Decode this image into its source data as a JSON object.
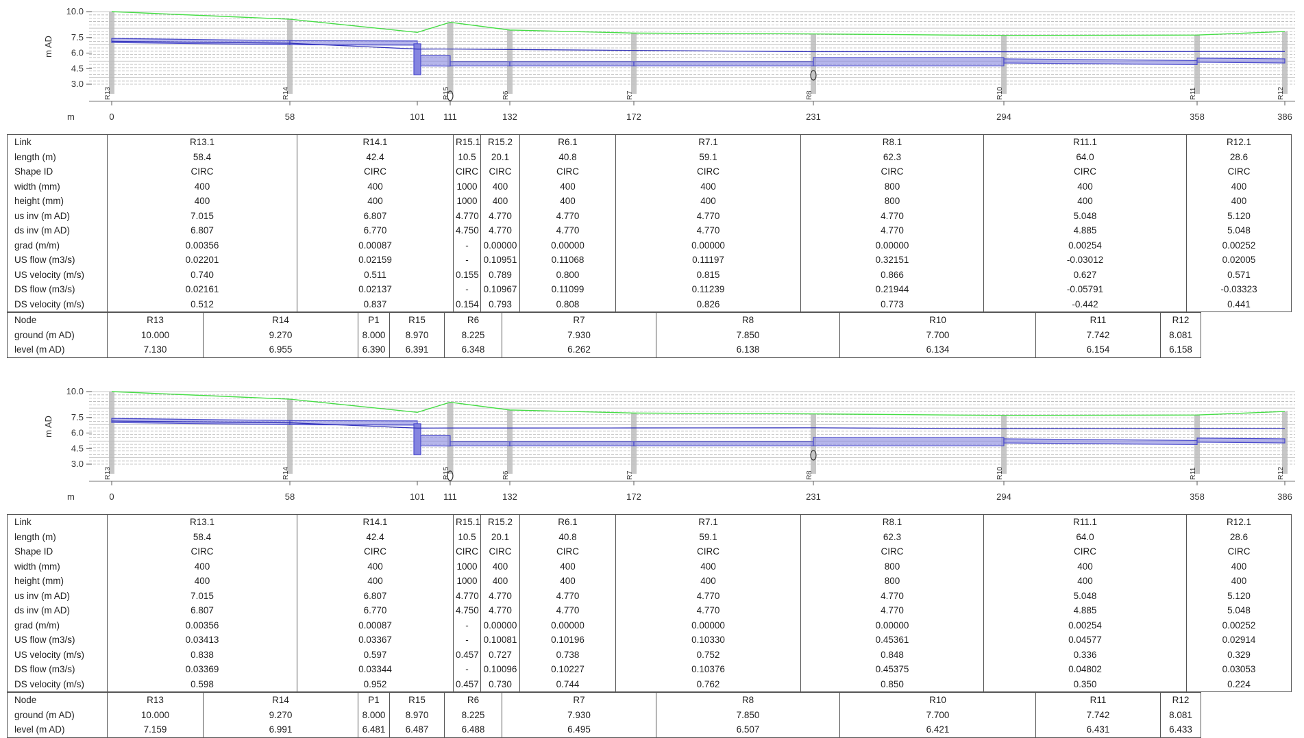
{
  "axis": {
    "y_label": "m AD",
    "x_label": "m",
    "y_ticks": [
      "10.0",
      "7.5",
      "6.0",
      "4.5",
      "3.0"
    ]
  },
  "colors": {
    "ground": "#46dd46",
    "pipe_fill": "#8585e0",
    "pipe_edge": "#4a4acc",
    "manhole": "#bdbdbd",
    "grid": "#b5b5b5",
    "border": "#555555"
  },
  "chainage_ticks": [
    "0",
    "58",
    "101",
    "111",
    "132",
    "172",
    "231",
    "294",
    "358",
    "386"
  ],
  "node_markers": [
    "R13",
    "R14",
    "R15",
    "R6",
    "R7",
    "R8",
    "R10",
    "R11",
    "R12"
  ],
  "panels": [
    {
      "chart_data": {
        "type": "area",
        "xlabel": "m",
        "ylabel": "m AD",
        "ylim": [
          3.0,
          10.0
        ],
        "x": [
          0,
          58.4,
          100.8,
          111.3,
          131.4,
          172.2,
          231.3,
          293.6,
          357.6,
          386.2
        ],
        "series": [
          {
            "name": "ground",
            "values": [
              10.0,
              9.27,
              8.0,
              8.97,
              8.225,
              7.93,
              7.85,
              7.7,
              7.742,
              8.081
            ]
          },
          {
            "name": "level",
            "values": [
              7.13,
              6.955,
              6.39,
              6.391,
              6.348,
              6.262,
              6.138,
              6.134,
              6.154,
              6.158
            ]
          }
        ]
      },
      "links": {
        "header": [
          "Link",
          "length (m)",
          "Shape ID",
          "width (mm)",
          "height (mm)",
          "us inv (m AD)",
          "ds inv (m AD)",
          "grad (m/m)",
          "US flow (m3/s)",
          "US velocity (m/s)",
          "DS flow (m3/s)",
          "DS velocity (m/s)"
        ],
        "columns": [
          [
            "R13.1",
            "58.4",
            "CIRC",
            "400",
            "400",
            "7.015",
            "6.807",
            "0.00356",
            "0.02201",
            "0.740",
            "0.02161",
            "0.512"
          ],
          [
            "R14.1",
            "42.4",
            "CIRC",
            "400",
            "400",
            "6.807",
            "6.770",
            "0.00087",
            "0.02159",
            "0.511",
            "0.02137",
            "0.837"
          ],
          [
            "R15.1",
            "10.5",
            "CIRC",
            "1000",
            "1000",
            "4.770",
            "4.750",
            "-",
            "-",
            "0.155",
            "-",
            "0.154"
          ],
          [
            "R15.2",
            "20.1",
            "CIRC",
            "400",
            "400",
            "4.770",
            "4.770",
            "0.00000",
            "0.10951",
            "0.789",
            "0.10967",
            "0.793"
          ],
          [
            "R6.1",
            "40.8",
            "CIRC",
            "400",
            "400",
            "4.770",
            "4.770",
            "0.00000",
            "0.11068",
            "0.800",
            "0.11099",
            "0.808"
          ],
          [
            "R7.1",
            "59.1",
            "CIRC",
            "400",
            "400",
            "4.770",
            "4.770",
            "0.00000",
            "0.11197",
            "0.815",
            "0.11239",
            "0.826"
          ],
          [
            "R8.1",
            "62.3",
            "CIRC",
            "800",
            "800",
            "4.770",
            "4.770",
            "0.00000",
            "0.32151",
            "0.866",
            "0.21944",
            "0.773"
          ],
          [
            "R11.1",
            "64.0",
            "CIRC",
            "400",
            "400",
            "5.048",
            "4.885",
            "0.00254",
            "-0.03012",
            "0.627",
            "-0.05791",
            "-0.442"
          ],
          [
            "R12.1",
            "28.6",
            "CIRC",
            "400",
            "400",
            "5.120",
            "5.048",
            "0.00252",
            "0.02005",
            "0.571",
            "-0.03323",
            "0.441"
          ]
        ]
      },
      "nodes": {
        "header": [
          "Node",
          "ground (m AD)",
          "level (m AD)"
        ],
        "columns": [
          [
            "R13",
            "10.000",
            "7.130"
          ],
          [
            "R14",
            "9.270",
            "6.955"
          ],
          [
            "P1",
            "8.000",
            "6.390"
          ],
          [
            "R15",
            "8.970",
            "6.391"
          ],
          [
            "R6",
            "8.225",
            "6.348"
          ],
          [
            "R7",
            "7.930",
            "6.262"
          ],
          [
            "R8",
            "7.850",
            "6.138"
          ],
          [
            "R10",
            "7.700",
            "6.134"
          ],
          [
            "R11",
            "7.742",
            "6.154"
          ],
          [
            "R12",
            "8.081",
            "6.158"
          ]
        ]
      }
    },
    {
      "chart_data": {
        "type": "area",
        "xlabel": "m",
        "ylabel": "m AD",
        "ylim": [
          3.0,
          10.0
        ],
        "x": [
          0,
          58.4,
          100.8,
          111.3,
          131.4,
          172.2,
          231.3,
          293.6,
          357.6,
          386.2
        ],
        "series": [
          {
            "name": "ground",
            "values": [
              10.0,
              9.27,
              8.0,
              8.97,
              8.225,
              7.93,
              7.85,
              7.7,
              7.742,
              8.081
            ]
          },
          {
            "name": "level",
            "values": [
              7.159,
              6.991,
              6.481,
              6.487,
              6.488,
              6.495,
              6.507,
              6.421,
              6.431,
              6.433
            ]
          }
        ]
      },
      "links": {
        "header": [
          "Link",
          "length (m)",
          "Shape ID",
          "width (mm)",
          "height (mm)",
          "us inv (m AD)",
          "ds inv (m AD)",
          "grad (m/m)",
          "US flow (m3/s)",
          "US velocity (m/s)",
          "DS flow (m3/s)",
          "DS velocity (m/s)"
        ],
        "columns": [
          [
            "R13.1",
            "58.4",
            "CIRC",
            "400",
            "400",
            "7.015",
            "6.807",
            "0.00356",
            "0.03413",
            "0.838",
            "0.03369",
            "0.598"
          ],
          [
            "R14.1",
            "42.4",
            "CIRC",
            "400",
            "400",
            "6.807",
            "6.770",
            "0.00087",
            "0.03367",
            "0.597",
            "0.03344",
            "0.952"
          ],
          [
            "R15.1",
            "10.5",
            "CIRC",
            "1000",
            "1000",
            "4.770",
            "4.750",
            "-",
            "-",
            "0.457",
            "-",
            "0.457"
          ],
          [
            "R15.2",
            "20.1",
            "CIRC",
            "400",
            "400",
            "4.770",
            "4.770",
            "0.00000",
            "0.10081",
            "0.727",
            "0.10096",
            "0.730"
          ],
          [
            "R6.1",
            "40.8",
            "CIRC",
            "400",
            "400",
            "4.770",
            "4.770",
            "0.00000",
            "0.10196",
            "0.738",
            "0.10227",
            "0.744"
          ],
          [
            "R7.1",
            "59.1",
            "CIRC",
            "400",
            "400",
            "4.770",
            "4.770",
            "0.00000",
            "0.10330",
            "0.752",
            "0.10376",
            "0.762"
          ],
          [
            "R8.1",
            "62.3",
            "CIRC",
            "800",
            "800",
            "4.770",
            "4.770",
            "0.00000",
            "0.45361",
            "0.848",
            "0.45375",
            "0.850"
          ],
          [
            "R11.1",
            "64.0",
            "CIRC",
            "400",
            "400",
            "5.048",
            "4.885",
            "0.00254",
            "0.04577",
            "0.336",
            "0.04802",
            "0.350"
          ],
          [
            "R12.1",
            "28.6",
            "CIRC",
            "400",
            "400",
            "5.120",
            "5.048",
            "0.00252",
            "0.02914",
            "0.329",
            "0.03053",
            "0.224"
          ]
        ]
      },
      "nodes": {
        "header": [
          "Node",
          "ground (m AD)",
          "level (m AD)"
        ],
        "columns": [
          [
            "R13",
            "10.000",
            "7.159"
          ],
          [
            "R14",
            "9.270",
            "6.991"
          ],
          [
            "P1",
            "8.000",
            "6.481"
          ],
          [
            "R15",
            "8.970",
            "6.487"
          ],
          [
            "R6",
            "8.225",
            "6.488"
          ],
          [
            "R7",
            "7.930",
            "6.495"
          ],
          [
            "R8",
            "7.850",
            "6.507"
          ],
          [
            "R10",
            "7.700",
            "6.421"
          ],
          [
            "R11",
            "7.742",
            "6.431"
          ],
          [
            "R12",
            "8.081",
            "6.433"
          ]
        ]
      }
    }
  ]
}
